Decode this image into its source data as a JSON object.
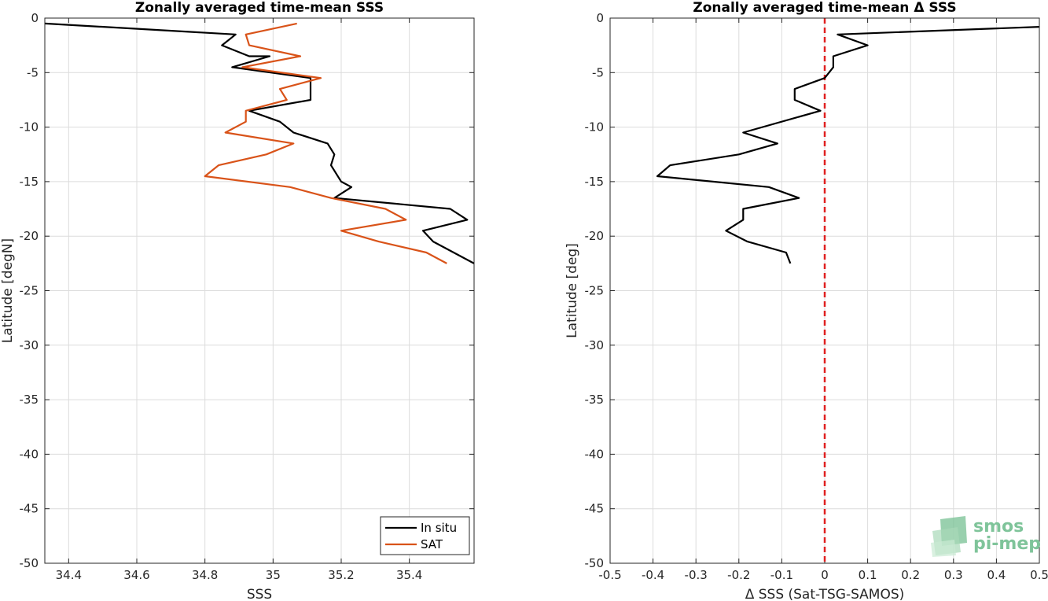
{
  "chart_data": [
    {
      "type": "line",
      "title": "Zonally averaged time-mean SSS",
      "xlabel": "SSS",
      "ylabel": "Latitude [degN]",
      "xlim": [
        34.33,
        35.59
      ],
      "ylim": [
        -50,
        0
      ],
      "xticks": [
        34.4,
        34.6,
        34.8,
        35,
        35.2,
        35.4
      ],
      "xtick_labels": [
        "34.4",
        "34.6",
        "34.8",
        "35",
        "35.2",
        "35.4"
      ],
      "yticks": [
        0,
        -5,
        -10,
        -15,
        -20,
        -25,
        -30,
        -35,
        -40,
        -45,
        -50
      ],
      "ytick_labels": [
        "0",
        "-5",
        "-10",
        "-15",
        "-20",
        "-25",
        "-30",
        "-35",
        "-40",
        "-45",
        "-50"
      ],
      "grid": true,
      "legend": {
        "position": "bottom-right",
        "entries": [
          "In situ",
          "SAT"
        ]
      },
      "series": [
        {
          "name": "In situ",
          "color": "#000000",
          "points": [
            [
              34.33,
              -0.5
            ],
            [
              34.89,
              -1.5
            ],
            [
              34.85,
              -2.5
            ],
            [
              34.93,
              -3.5
            ],
            [
              34.99,
              -3.5
            ],
            [
              34.88,
              -4.5
            ],
            [
              35.11,
              -5.5
            ],
            [
              35.11,
              -7.5
            ],
            [
              34.93,
              -8.5
            ],
            [
              35.02,
              -9.5
            ],
            [
              35.06,
              -10.5
            ],
            [
              35.16,
              -11.5
            ],
            [
              35.18,
              -12.5
            ],
            [
              35.17,
              -13.5
            ],
            [
              35.2,
              -15.0
            ],
            [
              35.23,
              -15.5
            ],
            [
              35.18,
              -16.5
            ],
            [
              35.52,
              -17.5
            ],
            [
              35.57,
              -18.5
            ],
            [
              35.44,
              -19.5
            ],
            [
              35.47,
              -20.5
            ],
            [
              35.53,
              -21.5
            ],
            [
              35.59,
              -22.5
            ]
          ]
        },
        {
          "name": "SAT",
          "color": "#d95319",
          "points": [
            [
              35.07,
              -0.5
            ],
            [
              34.92,
              -1.5
            ],
            [
              34.93,
              -2.5
            ],
            [
              35.08,
              -3.5
            ],
            [
              34.91,
              -4.5
            ],
            [
              35.14,
              -5.5
            ],
            [
              35.02,
              -6.5
            ],
            [
              35.04,
              -7.5
            ],
            [
              34.92,
              -8.5
            ],
            [
              34.92,
              -9.5
            ],
            [
              34.86,
              -10.5
            ],
            [
              35.06,
              -11.5
            ],
            [
              34.98,
              -12.5
            ],
            [
              34.84,
              -13.5
            ],
            [
              34.8,
              -14.5
            ],
            [
              35.05,
              -15.5
            ],
            [
              35.17,
              -16.5
            ],
            [
              35.33,
              -17.5
            ],
            [
              35.39,
              -18.5
            ],
            [
              35.2,
              -19.5
            ],
            [
              35.31,
              -20.5
            ],
            [
              35.45,
              -21.5
            ],
            [
              35.51,
              -22.5
            ]
          ]
        }
      ]
    },
    {
      "type": "line",
      "title": "Zonally averaged time-mean Δ SSS",
      "xlabel": "Δ SSS (Sat-TSG-SAMOS)",
      "ylabel": "Latitude [deg]",
      "xlim": [
        -0.5,
        0.5
      ],
      "ylim": [
        -50,
        0
      ],
      "xticks": [
        -0.5,
        -0.4,
        -0.3,
        -0.2,
        -0.1,
        0,
        0.1,
        0.2,
        0.3,
        0.4,
        0.5
      ],
      "xtick_labels": [
        "-0.5",
        "-0.4",
        "-0.3",
        "-0.2",
        "-0.1",
        "0",
        "0.1",
        "0.2",
        "0.3",
        "0.4",
        "0.5"
      ],
      "yticks": [
        0,
        -5,
        -10,
        -15,
        -20,
        -25,
        -30,
        -35,
        -40,
        -45,
        -50
      ],
      "ytick_labels": [
        "0",
        "-5",
        "-10",
        "-15",
        "-20",
        "-25",
        "-30",
        "-35",
        "-40",
        "-45",
        "-50"
      ],
      "grid": true,
      "reference_line": {
        "x": 0,
        "color": "#e02020",
        "style": "dashed"
      },
      "series": [
        {
          "color": "#000000",
          "points": [
            [
              0.5,
              -0.8
            ],
            [
              0.03,
              -1.5
            ],
            [
              0.1,
              -2.5
            ],
            [
              0.02,
              -3.5
            ],
            [
              0.02,
              -4.5
            ],
            [
              0.0,
              -5.5
            ],
            [
              -0.07,
              -6.5
            ],
            [
              -0.07,
              -7.5
            ],
            [
              -0.01,
              -8.5
            ],
            [
              -0.19,
              -10.5
            ],
            [
              -0.11,
              -11.5
            ],
            [
              -0.2,
              -12.5
            ],
            [
              -0.36,
              -13.5
            ],
            [
              -0.39,
              -14.5
            ],
            [
              -0.13,
              -15.5
            ],
            [
              -0.06,
              -16.5
            ],
            [
              -0.19,
              -17.5
            ],
            [
              -0.19,
              -18.5
            ],
            [
              -0.23,
              -19.5
            ],
            [
              -0.18,
              -20.5
            ],
            [
              -0.09,
              -21.5
            ],
            [
              -0.08,
              -22.5
            ]
          ]
        }
      ]
    }
  ],
  "logo": {
    "line1": "smos",
    "line2": "pi-mep"
  }
}
